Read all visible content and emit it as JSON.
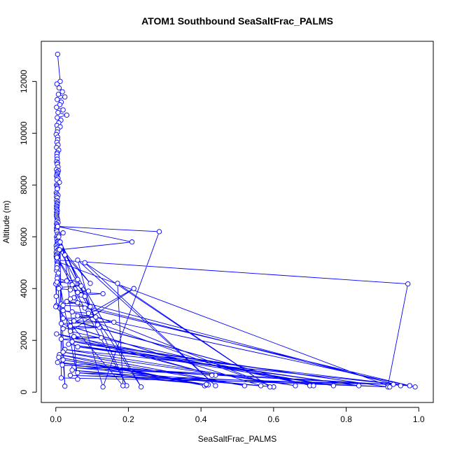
{
  "chart_data": {
    "type": "line",
    "title": "ATOM1 Southbound SeaSaltFrac_PALMS",
    "xlabel": "SeaSaltFrac_PALMS",
    "ylabel": "Altitude (m)",
    "xlim": [
      -0.04,
      1.04
    ],
    "ylim": [
      -400,
      13550
    ],
    "x_ticks": [
      0.0,
      0.2,
      0.4,
      0.6,
      0.8,
      1.0
    ],
    "x_tick_labels": [
      "0.0",
      "0.2",
      "0.4",
      "0.6",
      "0.8",
      "1.0"
    ],
    "y_ticks": [
      0,
      2000,
      4000,
      6000,
      8000,
      10000,
      12000
    ],
    "y_tick_labels": [
      "0",
      "2000",
      "4000",
      "6000",
      "8000",
      "10000",
      "12000"
    ],
    "grid": false,
    "series_color": "#0000ff",
    "marker": "open-circle",
    "series": [
      {
        "x": [
          0.005,
          0.012,
          0.003,
          0.009,
          0.018,
          0.007,
          0.025,
          0.004,
          0.015,
          0.011,
          0.002,
          0.02,
          0.006,
          0.03,
          0.004,
          0.014,
          0.008,
          0.003,
          0.012,
          0.005,
          0.004,
          0.001,
          0.005,
          0.005,
          0.003,
          0.006,
          0.002,
          0.008,
          0.004,
          0.003,
          0.003,
          0.004,
          0.002,
          0.005,
          0.004,
          0.006,
          0.002,
          0.007,
          0.004,
          0.005,
          0.003,
          0.002,
          0.004,
          0.006,
          0.003,
          0.01,
          0.002,
          0.003,
          0.005,
          0.004,
          0.001,
          0.003,
          0.006,
          0.002,
          0.004,
          0.002,
          0.005,
          0.003,
          0.004,
          0.002,
          0.003,
          0.002,
          0.003,
          0.004,
          0.002,
          0.003,
          0.002,
          0.002,
          0.003,
          0.004,
          0.005,
          0.003,
          0.006,
          0.002,
          0.003,
          0.004,
          0.002,
          0.003,
          0.002,
          0.003,
          0.02,
          0.005,
          0.008,
          0.002,
          0.004,
          0.003,
          0.006,
          0.004,
          0.005,
          0.003,
          0.001,
          0.004,
          0.002,
          0.006,
          0.003,
          0.001,
          0.004,
          0.002,
          0.001,
          0.002,
          0.003,
          0.006,
          0.97,
          0.915,
          0.003,
          0.005,
          0.004,
          0.003,
          0.0,
          0.001,
          0.002,
          0.001,
          0.002,
          0.005,
          0.007,
          0.004,
          0.03,
          0.06,
          0.003,
          0.05,
          0.045,
          0.07,
          0.012,
          0.008,
          0.04,
          0.09,
          0.06,
          0.13,
          0.07,
          0.08,
          0.05,
          0.04,
          0.95,
          0.03,
          0.06,
          0.015,
          0.02,
          0.1,
          0.08,
          0.99,
          0.02,
          0.045,
          0.09,
          0.6,
          0.06,
          0.11,
          0.02,
          0.7,
          0.05,
          0.16,
          0.015,
          0.565,
          0.04,
          0.12,
          0.02,
          0.215,
          0.04,
          0.71,
          0.002,
          0.44,
          0.05,
          0.125,
          0.015,
          0.915,
          0.045,
          0.765,
          0.035,
          0.835,
          0.06,
          0.975,
          0.025,
          0.66,
          0.02,
          0.52,
          0.01,
          0.41,
          0.008,
          0.415,
          0.02,
          0.42,
          0.005,
          0.43,
          0.018,
          0.975,
          0.05,
          0.6,
          0.045,
          0.415,
          0.06,
          0.92,
          0.04,
          0.93,
          0.015,
          0.012,
          0.21,
          0.005,
          0.285,
          0.13,
          0.008,
          0.115,
          0.012,
          0.195,
          0.003,
          0.235,
          0.014,
          0.095,
          0.025,
          0.06,
          0.003,
          0.025,
          0.01,
          0.095,
          0.06,
          0.44,
          0.08,
          0.59,
          0.17,
          0.185,
          0.0
        ],
        "y": [
          13050,
          12000,
          11900,
          11750,
          11600,
          11500,
          11400,
          11300,
          11200,
          11100,
          11000,
          10900,
          10800,
          10700,
          10600,
          10500,
          10400,
          10300,
          10250,
          10150,
          10050,
          9950,
          9850,
          9750,
          9650,
          9550,
          9450,
          9350,
          9250,
          9200,
          9100,
          9000,
          8900,
          8850,
          8800,
          8700,
          8600,
          8550,
          8500,
          8450,
          8400,
          8350,
          8300,
          8250,
          8200,
          8100,
          8000,
          7950,
          7900,
          7850,
          7700,
          7650,
          7600,
          7550,
          7500,
          7400,
          7350,
          7300,
          7250,
          7200,
          7150,
          7100,
          7050,
          7000,
          6950,
          6900,
          6850,
          6800,
          6750,
          6700,
          6650,
          6600,
          6550,
          6500,
          6450,
          6400,
          6350,
          6300,
          6250,
          6200,
          6150,
          6100,
          6050,
          6000,
          5950,
          5900,
          5850,
          5800,
          5750,
          5700,
          5650,
          5600,
          5550,
          5500,
          5450,
          5400,
          5350,
          5300,
          5250,
          5200,
          5150,
          5100,
          4180,
          250,
          5050,
          5000,
          4950,
          4900,
          4180,
          3700,
          3350,
          3300,
          4700,
          4500,
          4600,
          4400,
          4300,
          4350,
          4250,
          4200,
          4150,
          4100,
          4050,
          4000,
          3950,
          3900,
          3850,
          3800,
          3750,
          3700,
          3650,
          3600,
          250,
          3500,
          3450,
          3400,
          3350,
          3300,
          3250,
          200,
          3150,
          3100,
          3050,
          200,
          2950,
          2900,
          2850,
          250,
          2750,
          2700,
          2650,
          250,
          2550,
          2500,
          2450,
          4000,
          2350,
          250,
          2250,
          650,
          2150,
          2100,
          2050,
          200,
          1950,
          250,
          1850,
          250,
          1750,
          250,
          1650,
          250,
          1550,
          250,
          1450,
          250,
          1350,
          280,
          1250,
          280,
          1150,
          650,
          1050,
          250,
          950,
          200,
          850,
          300,
          750,
          200,
          650,
          300,
          550,
          5500,
          5800,
          6400,
          6200,
          200,
          6000,
          2600,
          5800,
          250,
          5200,
          200,
          5600,
          4200,
          5300,
          500,
          4800,
          230,
          5500,
          3300,
          5100,
          250,
          5000,
          200,
          4200,
          250,
          3300
        ]
      }
    ]
  }
}
